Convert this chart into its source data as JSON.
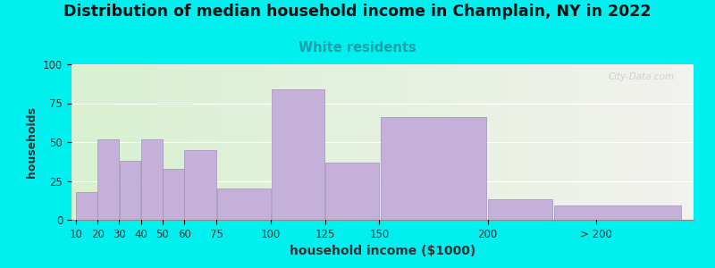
{
  "title": "Distribution of median household income in Champlain, NY in 2022",
  "subtitle": "White residents",
  "xlabel": "household income ($1000)",
  "ylabel": "households",
  "background_fig": "#00EFEF",
  "bar_color": "#c4b0d8",
  "bar_edge_color": "#a090b8",
  "title_fontsize": 12.5,
  "subtitle_fontsize": 10.5,
  "subtitle_color": "#20a0a8",
  "ylabel_fontsize": 9,
  "xlabel_fontsize": 10,
  "bars_left": [
    10,
    20,
    30,
    40,
    50,
    60,
    75,
    100,
    125,
    150,
    200,
    230
  ],
  "bars_width": [
    10,
    10,
    10,
    10,
    10,
    15,
    25,
    25,
    25,
    50,
    30,
    60
  ],
  "bars_height": [
    18,
    52,
    38,
    52,
    33,
    45,
    20,
    84,
    37,
    66,
    13,
    9
  ],
  "ylim": [
    0,
    100
  ],
  "yticks": [
    0,
    25,
    50,
    75,
    100
  ],
  "xtick_positions": [
    10,
    20,
    30,
    40,
    50,
    60,
    75,
    100,
    125,
    150,
    200,
    250
  ],
  "xtick_labels": [
    "10",
    "20",
    "30",
    "40",
    "50",
    "60",
    "75",
    "100",
    "125",
    "150",
    "200",
    "> 200"
  ],
  "xlim_left": 8,
  "xlim_right": 295,
  "watermark": "City-Data.com",
  "grad_split": 160,
  "grad_left_color": "#d8f0d0",
  "grad_right_color": "#f2f2ee"
}
